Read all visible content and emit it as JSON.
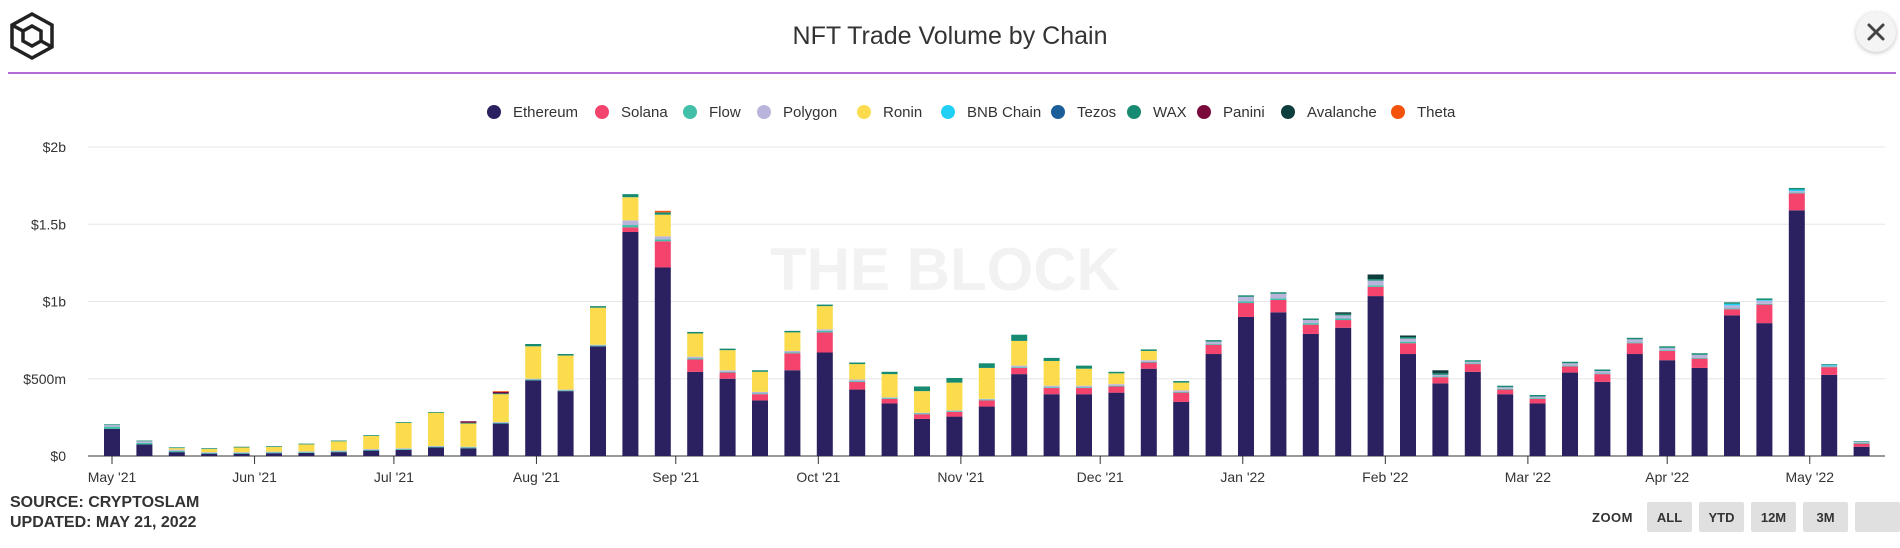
{
  "header": {
    "title": "NFT Trade Volume by Chain",
    "logo_icon": "cube-logo-icon",
    "close_icon": "close-icon"
  },
  "watermark": "THE BLOCK",
  "footer": {
    "source": "SOURCE: CRYPTOSLAM",
    "updated": "UPDATED: MAY 21, 2022"
  },
  "zoom": {
    "label": "ZOOM",
    "buttons": [
      "ALL",
      "YTD",
      "12M",
      "3M",
      ""
    ]
  },
  "chart_data": {
    "type": "bar",
    "stacked": true,
    "title": "NFT Trade Volume by Chain",
    "y_ticks": [
      "$0",
      "$500m",
      "$1b",
      "$1.5b",
      "$2b"
    ],
    "ylim": [
      0,
      2000
    ],
    "y_unit": "millions USD",
    "x_tick_labels": [
      "May '21",
      "Jun '21",
      "Jul '21",
      "Aug '21",
      "Sep '21",
      "Oct '21",
      "Nov '21",
      "Dec '21",
      "Jan '22",
      "Feb '22",
      "Mar '22",
      "Apr '22",
      "May '22"
    ],
    "x_tick_positions": [
      0,
      4.4,
      8.7,
      13.1,
      17.4,
      21.8,
      26.2,
      30.5,
      34.9,
      39.3,
      43.7,
      48.0,
      52.4
    ],
    "legend_position": "top-center",
    "grid": true,
    "series": [
      {
        "name": "Ethereum",
        "color": "#2b2161",
        "values": [
          175,
          75,
          25,
          15,
          15,
          18,
          20,
          25,
          35,
          40,
          55,
          50,
          210,
          490,
          420,
          710,
          1450,
          1220,
          545,
          500,
          360,
          555,
          670,
          430,
          340,
          240,
          255,
          320,
          530,
          400,
          400,
          410,
          565,
          350,
          660,
          900,
          930,
          790,
          830,
          1035,
          660,
          470,
          545,
          400,
          340,
          540,
          480,
          660,
          620,
          570,
          910,
          860,
          1590,
          525,
          60
        ]
      },
      {
        "name": "Solana",
        "color": "#f4436c",
        "values": [
          0,
          0,
          0,
          0,
          0,
          0,
          0,
          0,
          0,
          0,
          0,
          0,
          0,
          0,
          0,
          0,
          30,
          170,
          80,
          40,
          40,
          110,
          130,
          50,
          30,
          30,
          30,
          40,
          40,
          40,
          40,
          40,
          40,
          60,
          60,
          90,
          80,
          60,
          50,
          60,
          70,
          40,
          50,
          30,
          30,
          40,
          50,
          70,
          60,
          60,
          40,
          120,
          110,
          50,
          20
        ]
      },
      {
        "name": "Flow",
        "color": "#41bfa9",
        "values": [
          15,
          10,
          8,
          5,
          5,
          5,
          5,
          5,
          5,
          5,
          5,
          5,
          5,
          5,
          5,
          5,
          15,
          12,
          8,
          5,
          5,
          5,
          10,
          5,
          5,
          5,
          5,
          5,
          5,
          5,
          5,
          5,
          5,
          5,
          5,
          10,
          10,
          10,
          10,
          10,
          10,
          5,
          5,
          5,
          5,
          5,
          5,
          5,
          5,
          5,
          5,
          5,
          5,
          5,
          5
        ]
      },
      {
        "name": "Polygon",
        "color": "#b8b4dc",
        "values": [
          10,
          10,
          8,
          5,
          5,
          5,
          5,
          5,
          5,
          5,
          5,
          5,
          5,
          5,
          5,
          5,
          30,
          20,
          10,
          10,
          10,
          10,
          10,
          10,
          5,
          5,
          5,
          5,
          10,
          10,
          10,
          10,
          10,
          10,
          15,
          30,
          30,
          20,
          20,
          30,
          20,
          10,
          10,
          10,
          10,
          15,
          15,
          20,
          15,
          20,
          20,
          20,
          10,
          5,
          5
        ]
      },
      {
        "name": "Ronin",
        "color": "#fcdc4d",
        "values": [
          0,
          0,
          10,
          20,
          30,
          30,
          45,
          60,
          85,
          165,
          215,
          150,
          180,
          210,
          220,
          240,
          150,
          140,
          150,
          130,
          130,
          120,
          150,
          100,
          150,
          140,
          180,
          200,
          160,
          160,
          110,
          70,
          60,
          50,
          0,
          0,
          0,
          0,
          0,
          0,
          0,
          0,
          0,
          0,
          0,
          0,
          0,
          0,
          0,
          0,
          0,
          0,
          0,
          0,
          0
        ]
      },
      {
        "name": "BNB Chain",
        "color": "#21cff4",
        "values": [
          0,
          0,
          0,
          0,
          0,
          0,
          0,
          0,
          0,
          0,
          0,
          0,
          0,
          0,
          0,
          0,
          0,
          0,
          0,
          0,
          0,
          0,
          0,
          0,
          0,
          0,
          0,
          0,
          0,
          0,
          0,
          0,
          0,
          0,
          0,
          0,
          0,
          0,
          0,
          0,
          0,
          0,
          0,
          0,
          0,
          0,
          0,
          0,
          0,
          0,
          10,
          5,
          10,
          5,
          0
        ]
      },
      {
        "name": "Tezos",
        "color": "#1a5f9a",
        "values": [
          0,
          0,
          0,
          0,
          0,
          0,
          0,
          0,
          0,
          0,
          0,
          0,
          0,
          0,
          0,
          0,
          0,
          0,
          0,
          0,
          0,
          0,
          0,
          0,
          0,
          0,
          0,
          0,
          0,
          0,
          0,
          0,
          0,
          0,
          0,
          0,
          0,
          0,
          0,
          0,
          0,
          0,
          0,
          0,
          0,
          0,
          0,
          0,
          0,
          0,
          0,
          0,
          0,
          0,
          0
        ]
      },
      {
        "name": "WAX",
        "color": "#178b72",
        "values": [
          5,
          5,
          5,
          5,
          5,
          5,
          5,
          5,
          5,
          5,
          5,
          5,
          5,
          15,
          10,
          10,
          20,
          15,
          10,
          10,
          10,
          10,
          10,
          10,
          15,
          30,
          30,
          30,
          40,
          20,
          20,
          10,
          10,
          10,
          10,
          10,
          10,
          10,
          10,
          10,
          10,
          10,
          10,
          10,
          10,
          10,
          10,
          10,
          10,
          10,
          10,
          10,
          10,
          5,
          5
        ]
      },
      {
        "name": "Panini",
        "color": "#7a0a3c",
        "values": [
          0,
          0,
          0,
          0,
          0,
          0,
          0,
          0,
          0,
          0,
          0,
          10,
          10,
          0,
          0,
          0,
          0,
          0,
          0,
          0,
          0,
          0,
          0,
          0,
          0,
          0,
          0,
          0,
          0,
          0,
          0,
          0,
          0,
          0,
          0,
          0,
          0,
          0,
          0,
          0,
          0,
          0,
          0,
          0,
          0,
          0,
          0,
          0,
          0,
          0,
          0,
          0,
          0,
          0,
          0
        ]
      },
      {
        "name": "Avalanche",
        "color": "#0e3d3d",
        "values": [
          0,
          0,
          0,
          0,
          0,
          0,
          0,
          0,
          0,
          0,
          0,
          0,
          0,
          0,
          0,
          0,
          0,
          0,
          0,
          0,
          0,
          0,
          0,
          0,
          0,
          0,
          0,
          0,
          0,
          0,
          0,
          0,
          0,
          0,
          0,
          0,
          0,
          0,
          10,
          30,
          10,
          20,
          0,
          0,
          0,
          0,
          0,
          0,
          0,
          0,
          0,
          0,
          0,
          0,
          0
        ]
      },
      {
        "name": "Theta",
        "color": "#f5520c",
        "values": [
          0,
          0,
          0,
          0,
          0,
          0,
          0,
          0,
          0,
          0,
          0,
          0,
          5,
          0,
          0,
          0,
          0,
          10,
          0,
          0,
          0,
          0,
          0,
          0,
          0,
          0,
          0,
          0,
          0,
          0,
          0,
          0,
          0,
          0,
          0,
          0,
          0,
          0,
          0,
          0,
          0,
          0,
          0,
          0,
          0,
          0,
          0,
          0,
          0,
          0,
          0,
          0,
          0,
          0,
          0
        ]
      }
    ]
  }
}
